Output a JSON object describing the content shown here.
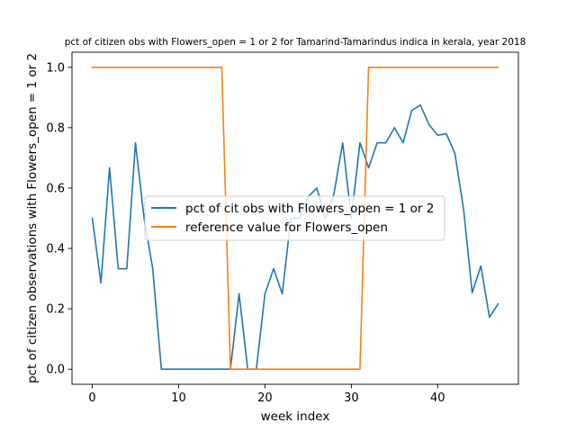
{
  "chart_data": {
    "type": "line",
    "title": "pct of citizen obs with Flowers_open = 1 or 2 for Tamarind-Tamarindus indica in kerala, year 2018",
    "xlabel": "week index",
    "ylabel": "pct of citizen observations with Flowers_open = 1 or 2",
    "xlim": [
      -2.35,
      49.35
    ],
    "ylim": [
      -0.05,
      1.05
    ],
    "xticks": [
      0,
      10,
      20,
      30,
      40
    ],
    "yticks": [
      0.0,
      0.2,
      0.4,
      0.6,
      0.8,
      1.0
    ],
    "xtick_labels": [
      "0",
      "10",
      "20",
      "30",
      "40"
    ],
    "ytick_labels": [
      "0.0",
      "0.2",
      "0.4",
      "0.6",
      "0.8",
      "1.0"
    ],
    "grid": false,
    "legend_position": "center",
    "series": [
      {
        "name": "pct of cit obs with Flowers_open = 1 or 2",
        "color": "#1f77b4",
        "x": [
          0,
          1,
          2,
          3,
          4,
          5,
          6,
          7,
          8,
          9,
          10,
          11,
          12,
          13,
          14,
          15,
          16,
          17,
          18,
          19,
          20,
          21,
          22,
          23,
          24,
          25,
          26,
          27,
          28,
          29,
          30,
          31,
          32,
          33,
          34,
          35,
          36,
          37,
          38,
          39,
          40,
          41,
          42,
          43,
          44,
          45,
          46,
          47
        ],
        "y": [
          0.5,
          0.286,
          0.667,
          0.333,
          0.333,
          0.75,
          0.5,
          0.333,
          0.0,
          0.0,
          0.0,
          0.0,
          0.0,
          0.0,
          0.0,
          0.0,
          0.0,
          0.25,
          0.0,
          0.0,
          0.25,
          0.333,
          0.25,
          0.5,
          0.5,
          0.571,
          0.6,
          0.5,
          0.583,
          0.75,
          0.5,
          0.75,
          0.667,
          0.75,
          0.75,
          0.8,
          0.75,
          0.857,
          0.875,
          0.81,
          0.775,
          0.78,
          0.714,
          0.53,
          0.253,
          0.342,
          0.172,
          0.216
        ]
      },
      {
        "name": "reference value for Flowers_open",
        "color": "#ff7f0e",
        "x": [
          0,
          1,
          2,
          3,
          4,
          5,
          6,
          7,
          8,
          9,
          10,
          11,
          12,
          13,
          14,
          15,
          16,
          17,
          18,
          19,
          20,
          21,
          22,
          23,
          24,
          25,
          26,
          27,
          28,
          29,
          30,
          31,
          32,
          33,
          34,
          35,
          36,
          37,
          38,
          39,
          40,
          41,
          42,
          43,
          44,
          45,
          46,
          47
        ],
        "y": [
          1,
          1,
          1,
          1,
          1,
          1,
          1,
          1,
          1,
          1,
          1,
          1,
          1,
          1,
          1,
          1,
          0,
          0,
          0,
          0,
          0,
          0,
          0,
          0,
          0,
          0,
          0,
          0,
          0,
          0,
          0,
          0,
          1,
          1,
          1,
          1,
          1,
          1,
          1,
          1,
          1,
          1,
          1,
          1,
          1,
          1,
          1,
          1
        ]
      }
    ]
  }
}
